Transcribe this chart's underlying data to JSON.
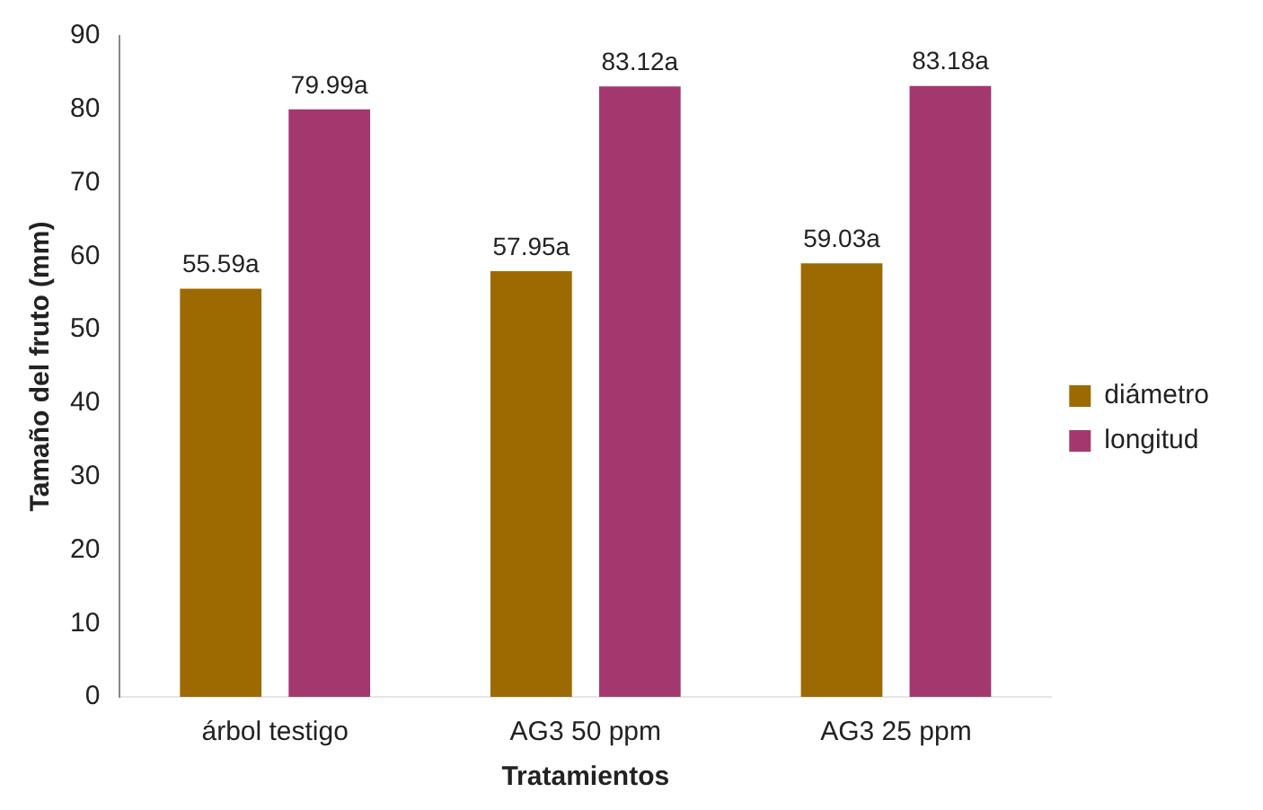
{
  "chart_data": {
    "type": "bar",
    "xlabel": "Tratamientos",
    "ylabel": "Tamaño del fruto (mm)",
    "categories": [
      "árbol testigo",
      "AG3 50 ppm",
      "AG3 25 ppm"
    ],
    "series": [
      {
        "name": "diámetro",
        "color": "#9c6a00",
        "values": [
          55.59,
          57.95,
          59.03
        ],
        "value_labels": [
          "55.59a",
          "57.95a",
          "59.03a"
        ]
      },
      {
        "name": "longitud",
        "color": "#a3386f",
        "values": [
          79.99,
          83.12,
          83.18
        ],
        "value_labels": [
          "79.99a",
          "83.12a",
          "83.18a"
        ]
      }
    ],
    "ylim": [
      0,
      90
    ],
    "yticks": [
      0,
      10,
      20,
      30,
      40,
      50,
      60,
      70,
      80,
      90
    ],
    "grid": false,
    "legend": "right"
  }
}
